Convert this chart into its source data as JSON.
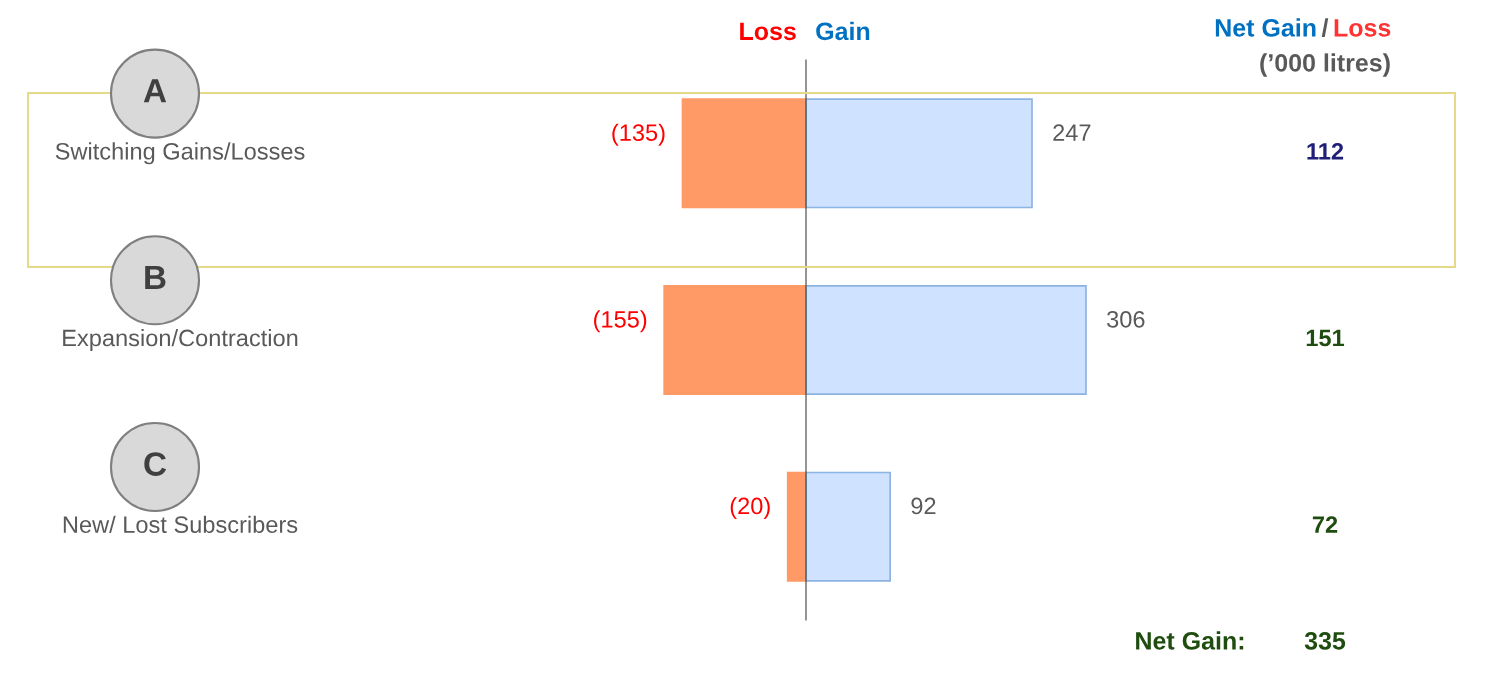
{
  "chart_data": {
    "type": "bar",
    "orientation": "horizontal",
    "stacked": true,
    "categories": [
      "Switching Gains/Losses",
      "Expansion/Contraction",
      "New/ Lost Subscribers"
    ],
    "series": [
      {
        "name": "Loss",
        "color": "#ff9966",
        "values": [
          -135,
          -155,
          -20
        ],
        "value_labels": [
          "(135)",
          "(155)",
          "(20)"
        ]
      },
      {
        "name": "Gain",
        "color": "#cfe2ff",
        "values": [
          247,
          306,
          92
        ],
        "value_labels": [
          "247",
          "306",
          "92"
        ]
      }
    ],
    "legend": false,
    "annotations": [
      "A",
      "B",
      "C",
      "Net Gain",
      "/",
      "Loss",
      "(’000 litres)",
      "112",
      "151",
      "72",
      "Net Gain:",
      "335"
    ]
  }
}
